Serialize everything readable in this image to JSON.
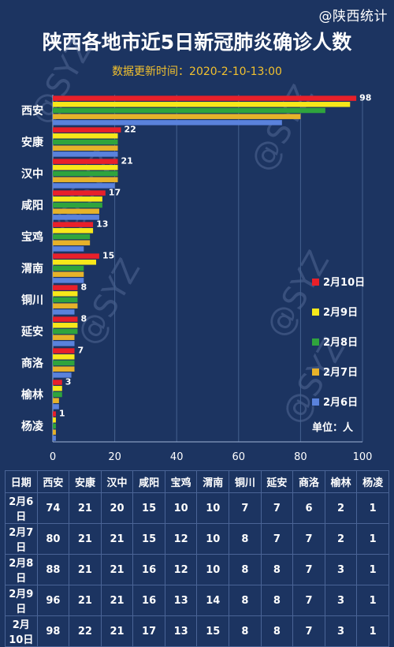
{
  "watermark": "@陕西统计",
  "title": "陕西各地市近5日新冠肺炎确诊人数",
  "subtitle": "数据更新时间：2020-2-10-13:00",
  "chart_data": {
    "type": "bar",
    "orientation": "horizontal",
    "categories": [
      "西安",
      "安康",
      "汉中",
      "咸阳",
      "宝鸡",
      "渭南",
      "铜川",
      "延安",
      "商洛",
      "榆林",
      "杨凌"
    ],
    "series": [
      {
        "name": "2月10日",
        "color": "#e8202a",
        "values": [
          98,
          22,
          21,
          17,
          13,
          15,
          8,
          8,
          7,
          3,
          1
        ]
      },
      {
        "name": "2月9日",
        "color": "#f7e81a",
        "values": [
          96,
          21,
          21,
          16,
          13,
          14,
          8,
          8,
          7,
          3,
          1
        ]
      },
      {
        "name": "2月8日",
        "color": "#2fa43d",
        "values": [
          88,
          21,
          21,
          16,
          12,
          10,
          8,
          8,
          7,
          3,
          1
        ]
      },
      {
        "name": "2月7日",
        "color": "#e6b22a",
        "values": [
          80,
          21,
          21,
          15,
          12,
          10,
          8,
          7,
          7,
          2,
          1
        ]
      },
      {
        "name": "2月6日",
        "color": "#5a82dc",
        "values": [
          74,
          21,
          20,
          15,
          10,
          10,
          7,
          7,
          6,
          2,
          1
        ]
      }
    ],
    "data_labels": [
      98,
      22,
      21,
      17,
      13,
      15,
      8,
      8,
      7,
      3,
      1
    ],
    "xlim": [
      0,
      100
    ],
    "xticks": [
      0,
      20,
      40,
      60,
      80,
      100
    ],
    "grid": true,
    "legend_position": "right",
    "unit_label": "单位：人",
    "watermark_text": "@SYZ"
  },
  "table": {
    "headers": [
      "日期",
      "西安",
      "安康",
      "汉中",
      "咸阳",
      "宝鸡",
      "渭南",
      "铜川",
      "延安",
      "商洛",
      "榆林",
      "杨凌"
    ],
    "rows": [
      [
        "2月6日",
        "74",
        "21",
        "20",
        "15",
        "10",
        "10",
        "7",
        "7",
        "6",
        "2",
        "1"
      ],
      [
        "2月7日",
        "80",
        "21",
        "21",
        "15",
        "12",
        "10",
        "8",
        "7",
        "7",
        "2",
        "1"
      ],
      [
        "2月8日",
        "88",
        "21",
        "21",
        "16",
        "12",
        "10",
        "8",
        "8",
        "7",
        "3",
        "1"
      ],
      [
        "2月9日",
        "96",
        "21",
        "21",
        "16",
        "13",
        "14",
        "8",
        "8",
        "7",
        "3",
        "1"
      ],
      [
        "2月10日",
        "98",
        "22",
        "21",
        "17",
        "13",
        "15",
        "8",
        "8",
        "7",
        "3",
        "1"
      ]
    ]
  }
}
